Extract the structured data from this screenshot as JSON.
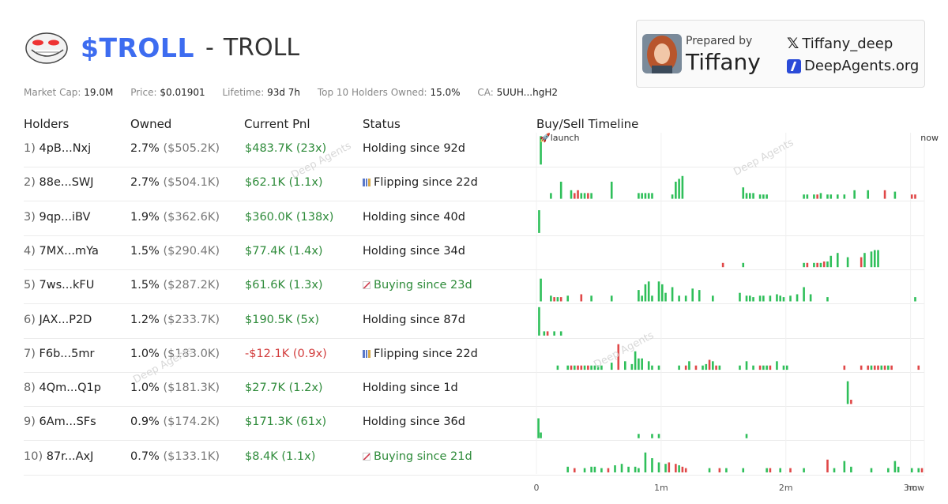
{
  "header": {
    "ticker": "$TROLL",
    "dash": "-",
    "name": "TROLL"
  },
  "card": {
    "prepared_by": "Prepared by",
    "name": "Tiffany",
    "x_handle": "Tiffany_deep",
    "site": "DeepAgents.org",
    "x_icon": "x-logo-icon",
    "site_icon": "deepagents-logo-icon"
  },
  "stats": {
    "market_cap_label": "Market Cap:",
    "market_cap": "19.0M",
    "price_label": "Price:",
    "price": "$0.01901",
    "lifetime_label": "Lifetime:",
    "lifetime": "93d 7h",
    "top10_label": "Top 10 Holders Owned:",
    "top10": "15.0%",
    "ca_label": "CA:",
    "ca": "5UUH...hgH2"
  },
  "columns": {
    "holders": "Holders",
    "owned": "Owned",
    "pnl": "Current Pnl",
    "status": "Status",
    "timeline": "Buy/Sell Timeline"
  },
  "watermark": "Deep Agents",
  "rows": [
    {
      "idx": "1)",
      "addr": "4pB...Nxj",
      "pct": "2.7%",
      "usd": "($505.2K)",
      "pnl": "$483.7K (23x)",
      "neg": false,
      "status": "Holding since 92d",
      "icon": ""
    },
    {
      "idx": "2)",
      "addr": "88e...SWJ",
      "pct": "2.7%",
      "usd": "($504.1K)",
      "pnl": "$62.1K (1.1x)",
      "neg": false,
      "status": "Flipping since 22d",
      "icon": "flip"
    },
    {
      "idx": "3)",
      "addr": "9qp...iBV",
      "pct": "1.9%",
      "usd": "($362.6K)",
      "pnl": "$360.0K (138x)",
      "neg": false,
      "status": "Holding since 40d",
      "icon": ""
    },
    {
      "idx": "4)",
      "addr": "7MX...mYa",
      "pct": "1.5%",
      "usd": "($290.4K)",
      "pnl": "$77.4K (1.4x)",
      "neg": false,
      "status": "Holding since 34d",
      "icon": ""
    },
    {
      "idx": "5)",
      "addr": "7ws...kFU",
      "pct": "1.5%",
      "usd": "($287.2K)",
      "pnl": "$61.6K (1.3x)",
      "neg": false,
      "status": "Buying since 23d",
      "icon": "buy"
    },
    {
      "idx": "6)",
      "addr": "JAX...P2D",
      "pct": "1.2%",
      "usd": "($233.7K)",
      "pnl": "$190.5K (5x)",
      "neg": false,
      "status": "Holding since 87d",
      "icon": ""
    },
    {
      "idx": "7)",
      "addr": "F6b...5mr",
      "pct": "1.0%",
      "usd": "($183.0K)",
      "pnl": "-$12.1K (0.9x)",
      "neg": true,
      "status": "Flipping since 22d",
      "icon": "flip"
    },
    {
      "idx": "8)",
      "addr": "4Qm...Q1p",
      "pct": "1.0%",
      "usd": "($181.3K)",
      "pnl": "$27.7K (1.2x)",
      "neg": false,
      "status": "Holding since 1d",
      "icon": ""
    },
    {
      "idx": "9)",
      "addr": "6Am...SFs",
      "pct": "0.9%",
      "usd": "($174.2K)",
      "pnl": "$171.3K (61x)",
      "neg": false,
      "status": "Holding since 36d",
      "icon": ""
    },
    {
      "idx": "10)",
      "addr": "87r...AxJ",
      "pct": "0.7%",
      "usd": "($133.1K)",
      "pnl": "$8.4K (1.1x)",
      "neg": false,
      "status": "Buying since 21d",
      "icon": "buy"
    }
  ],
  "chart_data": {
    "type": "bar",
    "title": "Buy/Sell Timeline",
    "x_range_days": [
      0,
      93.3
    ],
    "x_ticks": [
      {
        "label": "0",
        "day": 0
      },
      {
        "label": "1m",
        "day": 30
      },
      {
        "label": "2m",
        "day": 60
      },
      {
        "label": "3m",
        "day": 90
      },
      {
        "label": "now",
        "day": 93.3
      }
    ],
    "top_labels": {
      "launch": "🚀launch",
      "now": "now"
    },
    "colors": {
      "buy": "#2fbf5a",
      "sell": "#e04848"
    },
    "series": [
      {
        "holder": "4pB...Nxj",
        "events": [
          [
            1,
            1.0,
            "b"
          ]
        ]
      },
      {
        "holder": "88e...SWJ",
        "events": [
          [
            4,
            0.2,
            "b"
          ],
          [
            7,
            0.6,
            "b"
          ],
          [
            10,
            0.3,
            "b"
          ],
          [
            11,
            0.2,
            "s"
          ],
          [
            12,
            0.3,
            "s"
          ],
          [
            13,
            0.2,
            "b"
          ],
          [
            14,
            0.2,
            "b"
          ],
          [
            15,
            0.2,
            "s"
          ],
          [
            16,
            0.2,
            "b"
          ],
          [
            22,
            0.6,
            "b"
          ],
          [
            30,
            0.2,
            "b"
          ],
          [
            31,
            0.2,
            "b"
          ],
          [
            32,
            0.2,
            "b"
          ],
          [
            33,
            0.2,
            "b"
          ],
          [
            34,
            0.2,
            "b"
          ],
          [
            40,
            0.15,
            "b"
          ],
          [
            41,
            0.6,
            "b"
          ],
          [
            42,
            0.7,
            "b"
          ],
          [
            43,
            0.8,
            "b"
          ],
          [
            61,
            0.4,
            "b"
          ],
          [
            62,
            0.2,
            "b"
          ],
          [
            63,
            0.2,
            "b"
          ],
          [
            64,
            0.2,
            "b"
          ],
          [
            66,
            0.15,
            "b"
          ],
          [
            67,
            0.15,
            "b"
          ],
          [
            68,
            0.15,
            "b"
          ],
          [
            79,
            0.15,
            "b"
          ],
          [
            80,
            0.15,
            "b"
          ],
          [
            82,
            0.15,
            "b"
          ],
          [
            83,
            0.15,
            "s"
          ],
          [
            84,
            0.2,
            "b"
          ],
          [
            86,
            0.15,
            "b"
          ],
          [
            87,
            0.15,
            "b"
          ],
          [
            89,
            0.15,
            "b"
          ],
          [
            91,
            0.15,
            "b"
          ],
          [
            94,
            0.3,
            "b"
          ],
          [
            98,
            0.3,
            "b"
          ],
          [
            103,
            0.3,
            "s"
          ],
          [
            106,
            0.25,
            "b"
          ],
          [
            111,
            0.15,
            "s"
          ],
          [
            112,
            0.15,
            "s"
          ]
        ]
      },
      {
        "holder": "9qp...iBV",
        "events": [
          [
            0.5,
            0.8,
            "b"
          ]
        ]
      },
      {
        "holder": "7MX...mYa",
        "events": [
          [
            55,
            0.15,
            "s"
          ],
          [
            61,
            0.15,
            "b"
          ],
          [
            79,
            0.15,
            "b"
          ],
          [
            80,
            0.15,
            "s"
          ],
          [
            82,
            0.15,
            "b"
          ],
          [
            83,
            0.15,
            "s"
          ],
          [
            84,
            0.15,
            "b"
          ],
          [
            85,
            0.2,
            "s"
          ],
          [
            86,
            0.2,
            "b"
          ],
          [
            87,
            0.4,
            "b"
          ],
          [
            89,
            0.5,
            "b"
          ],
          [
            92,
            0.35,
            "b"
          ],
          [
            96,
            0.35,
            "s"
          ],
          [
            97,
            0.5,
            "b"
          ],
          [
            99,
            0.55,
            "b"
          ],
          [
            100,
            0.6,
            "b"
          ],
          [
            101,
            0.6,
            "b"
          ]
        ]
      },
      {
        "holder": "7ws...kFU",
        "events": [
          [
            1,
            0.8,
            "b"
          ],
          [
            4,
            0.2,
            "b"
          ],
          [
            5,
            0.15,
            "s"
          ],
          [
            6,
            0.15,
            "b"
          ],
          [
            7,
            0.15,
            "s"
          ],
          [
            9,
            0.2,
            "b"
          ],
          [
            13,
            0.25,
            "s"
          ],
          [
            16,
            0.2,
            "b"
          ],
          [
            22,
            0.2,
            "b"
          ],
          [
            30,
            0.4,
            "b"
          ],
          [
            31,
            0.2,
            "b"
          ],
          [
            32,
            0.6,
            "b"
          ],
          [
            33,
            0.7,
            "b"
          ],
          [
            34,
            0.2,
            "b"
          ],
          [
            36,
            0.7,
            "b"
          ],
          [
            37,
            0.6,
            "b"
          ],
          [
            38,
            0.3,
            "b"
          ],
          [
            40,
            0.5,
            "b"
          ],
          [
            42,
            0.2,
            "b"
          ],
          [
            44,
            0.2,
            "b"
          ],
          [
            46,
            0.45,
            "b"
          ],
          [
            48,
            0.4,
            "b"
          ],
          [
            52,
            0.2,
            "b"
          ],
          [
            60,
            0.3,
            "b"
          ],
          [
            62,
            0.2,
            "b"
          ],
          [
            63,
            0.2,
            "b"
          ],
          [
            64,
            0.15,
            "b"
          ],
          [
            66,
            0.2,
            "b"
          ],
          [
            67,
            0.2,
            "b"
          ],
          [
            69,
            0.2,
            "b"
          ],
          [
            71,
            0.25,
            "b"
          ],
          [
            72,
            0.2,
            "b"
          ],
          [
            73,
            0.15,
            "b"
          ],
          [
            75,
            0.2,
            "b"
          ],
          [
            77,
            0.25,
            "b"
          ],
          [
            79,
            0.5,
            "b"
          ],
          [
            81,
            0.25,
            "b"
          ],
          [
            86,
            0.15,
            "b"
          ],
          [
            112,
            0.15,
            "b"
          ]
        ]
      },
      {
        "holder": "JAX...P2D",
        "events": [
          [
            0.5,
            1.0,
            "b"
          ],
          [
            2,
            0.15,
            "b"
          ],
          [
            3,
            0.15,
            "s"
          ],
          [
            5,
            0.15,
            "b"
          ],
          [
            7,
            0.15,
            "b"
          ]
        ]
      },
      {
        "holder": "F6b...5mr",
        "events": [
          [
            6,
            0.15,
            "b"
          ],
          [
            9,
            0.15,
            "b"
          ],
          [
            10,
            0.15,
            "s"
          ],
          [
            11,
            0.15,
            "b"
          ],
          [
            12,
            0.15,
            "s"
          ],
          [
            13,
            0.15,
            "s"
          ],
          [
            14,
            0.15,
            "b"
          ],
          [
            15,
            0.15,
            "s"
          ],
          [
            16,
            0.15,
            "b"
          ],
          [
            17,
            0.15,
            "b"
          ],
          [
            18,
            0.15,
            "b"
          ],
          [
            19,
            0.15,
            "b"
          ],
          [
            22,
            0.25,
            "b"
          ],
          [
            24,
            0.9,
            "s"
          ],
          [
            26,
            0.3,
            "b"
          ],
          [
            28,
            0.2,
            "b"
          ],
          [
            29,
            0.65,
            "b"
          ],
          [
            30,
            0.4,
            "b"
          ],
          [
            31,
            0.4,
            "b"
          ],
          [
            33,
            0.3,
            "b"
          ],
          [
            34,
            0.15,
            "b"
          ],
          [
            36,
            0.15,
            "b"
          ],
          [
            42,
            0.15,
            "b"
          ],
          [
            44,
            0.15,
            "s"
          ],
          [
            45,
            0.3,
            "b"
          ],
          [
            47,
            0.15,
            "s"
          ],
          [
            49,
            0.15,
            "b"
          ],
          [
            50,
            0.2,
            "b"
          ],
          [
            51,
            0.35,
            "s"
          ],
          [
            52,
            0.3,
            "b"
          ],
          [
            53,
            0.15,
            "s"
          ],
          [
            54,
            0.15,
            "b"
          ],
          [
            60,
            0.15,
            "b"
          ],
          [
            62,
            0.3,
            "b"
          ],
          [
            64,
            0.15,
            "b"
          ],
          [
            66,
            0.15,
            "s"
          ],
          [
            67,
            0.15,
            "b"
          ],
          [
            68,
            0.15,
            "b"
          ],
          [
            69,
            0.15,
            "s"
          ],
          [
            71,
            0.3,
            "b"
          ],
          [
            73,
            0.15,
            "b"
          ],
          [
            74,
            0.15,
            "b"
          ],
          [
            91,
            0.15,
            "s"
          ],
          [
            96,
            0.15,
            "s"
          ],
          [
            98,
            0.15,
            "s"
          ],
          [
            99,
            0.15,
            "b"
          ],
          [
            100,
            0.15,
            "s"
          ],
          [
            101,
            0.15,
            "s"
          ],
          [
            102,
            0.15,
            "b"
          ],
          [
            103,
            0.15,
            "s"
          ],
          [
            104,
            0.15,
            "b"
          ],
          [
            105,
            0.15,
            "s"
          ],
          [
            113,
            0.15,
            "s"
          ]
        ]
      },
      {
        "holder": "4Qm...Q1p",
        "events": [
          [
            92,
            0.8,
            "b"
          ],
          [
            93,
            0.15,
            "s"
          ]
        ]
      },
      {
        "holder": "6Am...SFs",
        "events": [
          [
            0.3,
            0.7,
            "b"
          ],
          [
            1,
            0.2,
            "b"
          ],
          [
            30,
            0.15,
            "b"
          ],
          [
            34,
            0.15,
            "b"
          ],
          [
            36,
            0.15,
            "b"
          ],
          [
            62,
            0.15,
            "b"
          ]
        ]
      },
      {
        "holder": "87r...AxJ",
        "events": [
          [
            9,
            0.2,
            "b"
          ],
          [
            11,
            0.15,
            "s"
          ],
          [
            14,
            0.15,
            "b"
          ],
          [
            16,
            0.2,
            "b"
          ],
          [
            17,
            0.2,
            "b"
          ],
          [
            19,
            0.15,
            "b"
          ],
          [
            21,
            0.15,
            "s"
          ],
          [
            23,
            0.25,
            "b"
          ],
          [
            25,
            0.3,
            "b"
          ],
          [
            27,
            0.2,
            "b"
          ],
          [
            29,
            0.2,
            "b"
          ],
          [
            30,
            0.15,
            "b"
          ],
          [
            32,
            0.7,
            "b"
          ],
          [
            34,
            0.5,
            "b"
          ],
          [
            36,
            0.35,
            "b"
          ],
          [
            38,
            0.3,
            "b"
          ],
          [
            39,
            0.35,
            "s"
          ],
          [
            41,
            0.3,
            "s"
          ],
          [
            42,
            0.25,
            "b"
          ],
          [
            43,
            0.2,
            "s"
          ],
          [
            44,
            0.15,
            "s"
          ],
          [
            51,
            0.15,
            "b"
          ],
          [
            54,
            0.15,
            "s"
          ],
          [
            56,
            0.15,
            "b"
          ],
          [
            61,
            0.15,
            "b"
          ],
          [
            68,
            0.15,
            "b"
          ],
          [
            69,
            0.15,
            "s"
          ],
          [
            72,
            0.15,
            "b"
          ],
          [
            75,
            0.15,
            "s"
          ],
          [
            79,
            0.15,
            "b"
          ],
          [
            86,
            0.45,
            "s"
          ],
          [
            88,
            0.15,
            "b"
          ],
          [
            91,
            0.4,
            "b"
          ],
          [
            93,
            0.2,
            "b"
          ],
          [
            99,
            0.15,
            "b"
          ],
          [
            104,
            0.15,
            "b"
          ],
          [
            106,
            0.4,
            "b"
          ],
          [
            107,
            0.2,
            "b"
          ],
          [
            111,
            0.15,
            "b"
          ],
          [
            113,
            0.15,
            "b"
          ],
          [
            114,
            0.15,
            "s"
          ]
        ]
      }
    ]
  }
}
